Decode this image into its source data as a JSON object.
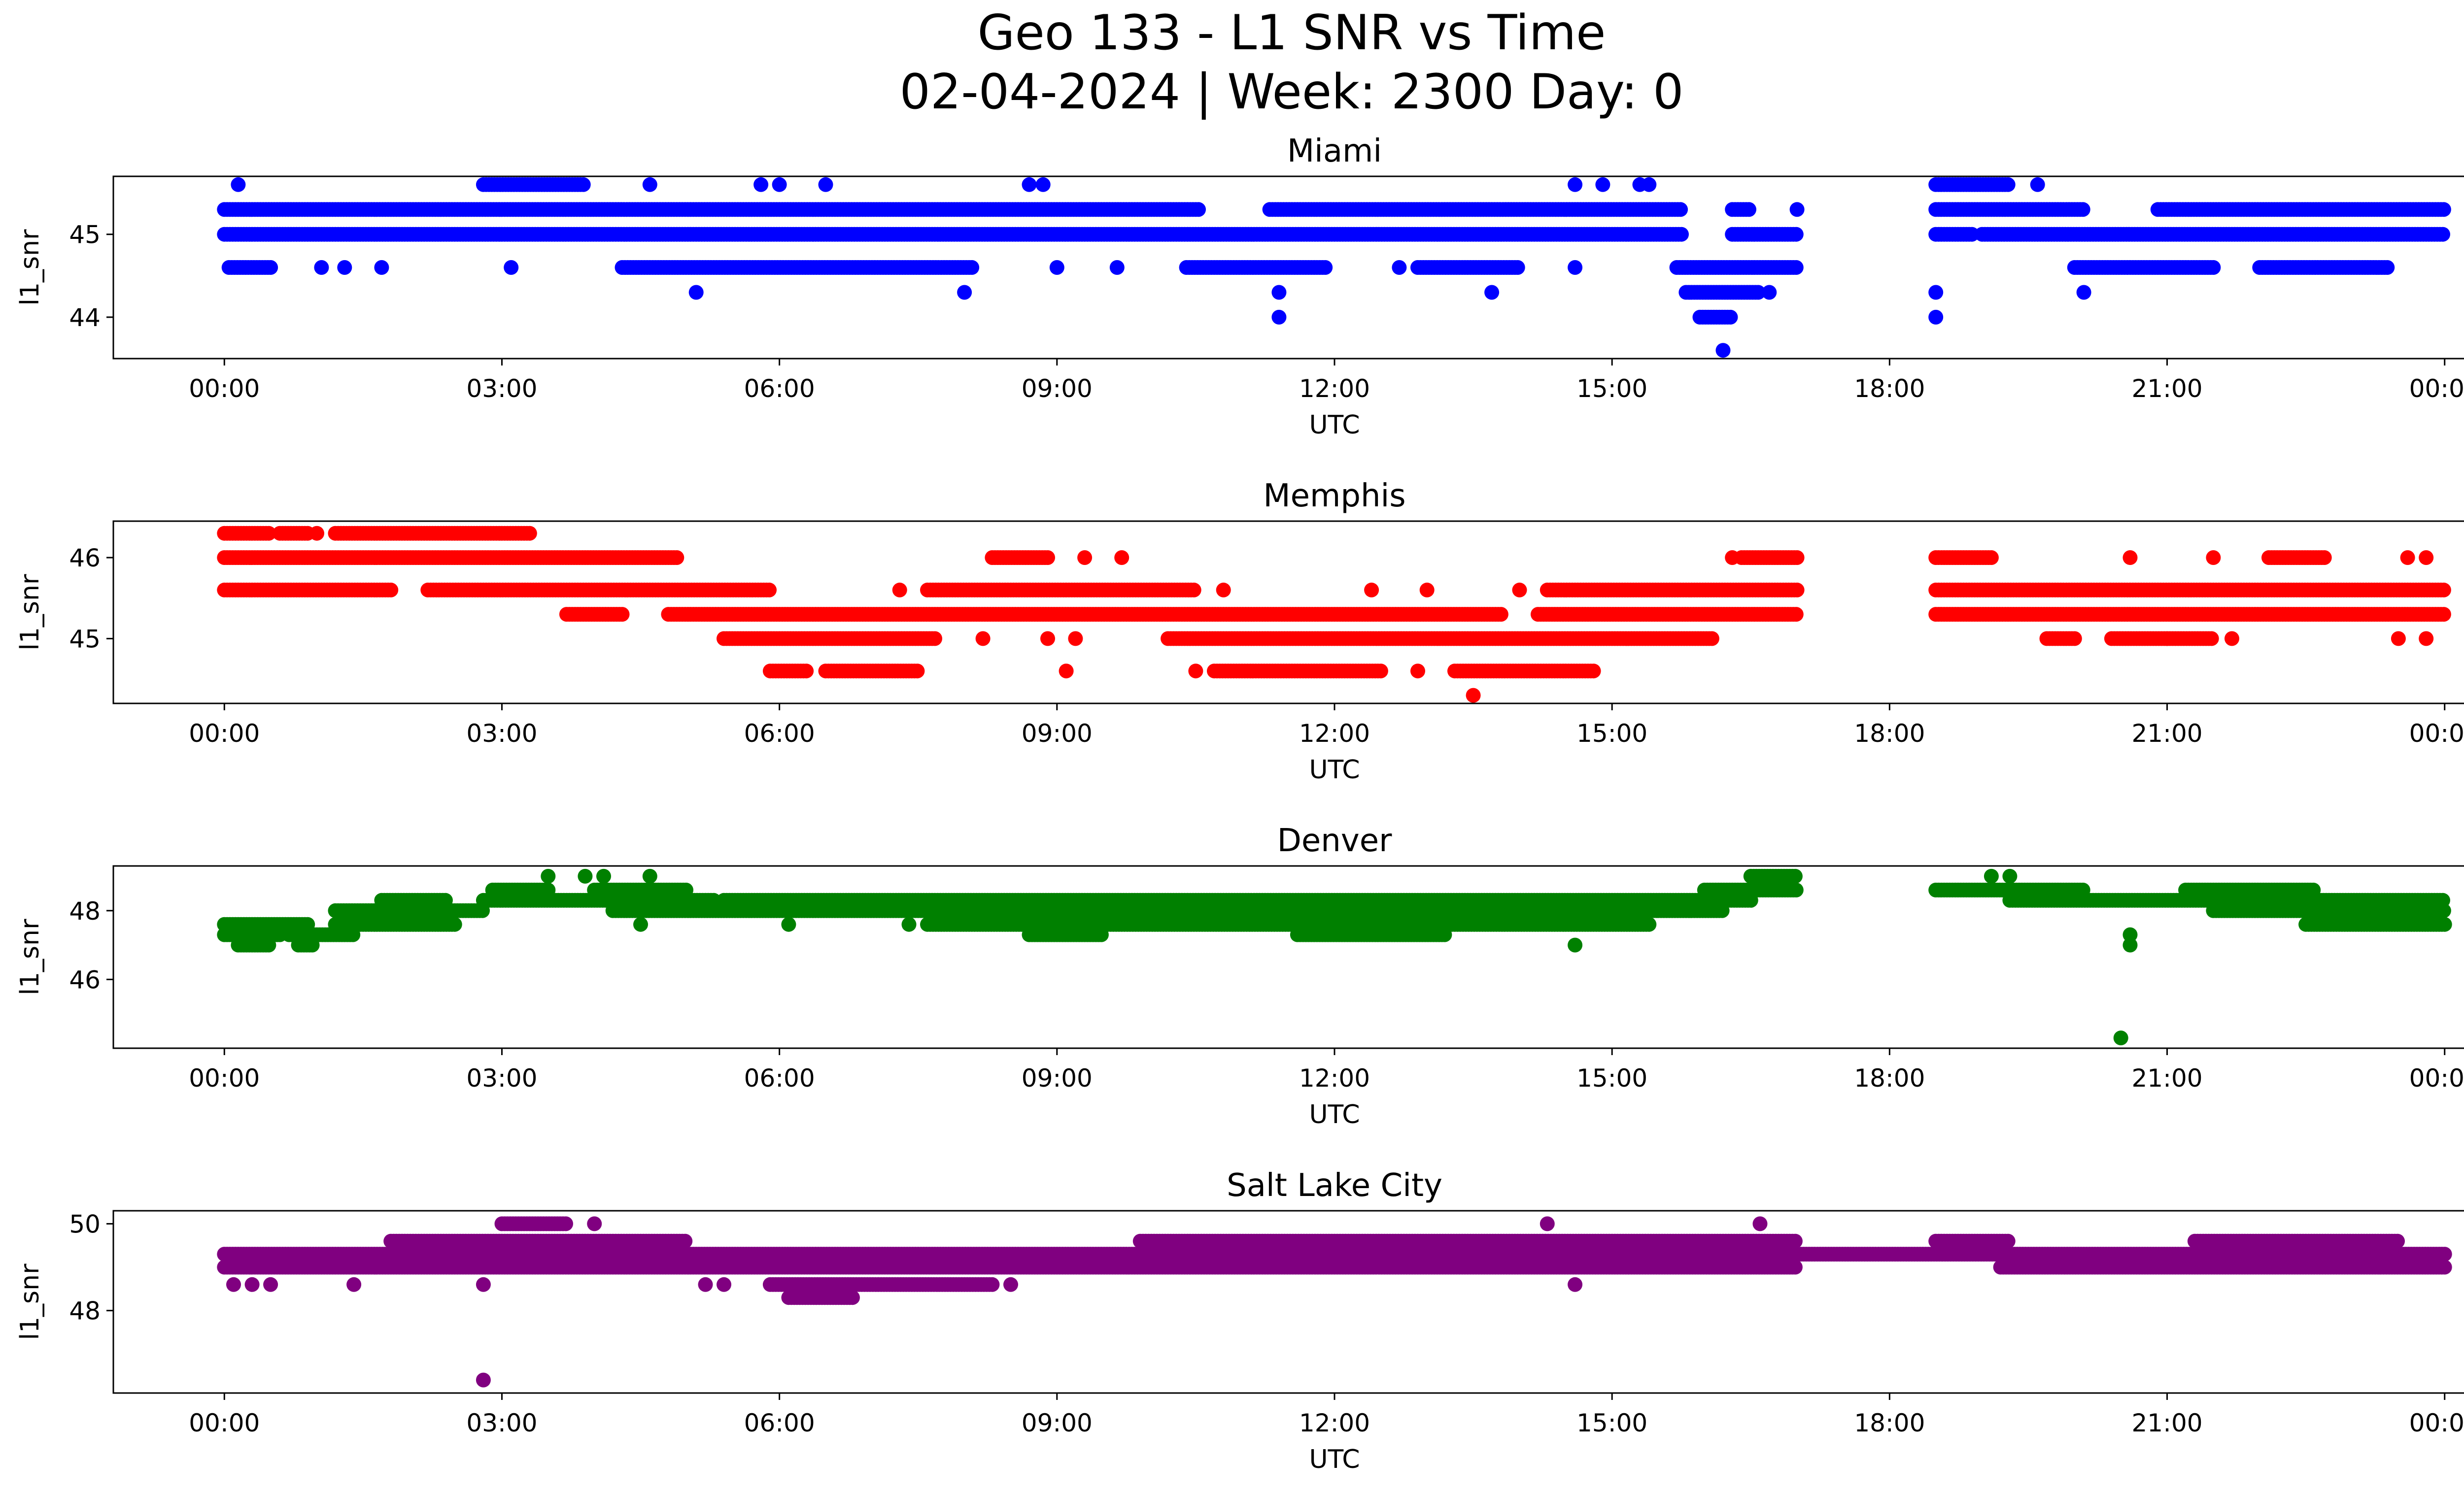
{
  "figure": {
    "title_line1": "Geo 133 - L1 SNR vs Time",
    "title_line2": "02-04-2024 | Week: 2300 Day: 0"
  },
  "chart_data": [
    {
      "type": "scatter",
      "title": "Miami",
      "xlabel": "UTC",
      "ylabel": "l1_snr",
      "color": "#0000ff",
      "x_unit": "hours UTC",
      "xlim": [
        -1.2,
        25.2
      ],
      "ylim": [
        43.5,
        45.7
      ],
      "xticks": [
        0,
        3,
        6,
        9,
        12,
        15,
        18,
        21,
        24
      ],
      "xtick_labels": [
        "00:00",
        "03:00",
        "06:00",
        "09:00",
        "12:00",
        "15:00",
        "18:00",
        "21:00",
        "00:00"
      ],
      "yticks": [
        44,
        45
      ],
      "ytick_labels": [
        "44",
        "45"
      ],
      "bands": [
        {
          "y": 45.3,
          "segments": [
            [
              0.0,
              10.55
            ],
            [
              11.3,
              15.75
            ],
            [
              16.3,
              16.5
            ],
            [
              18.5,
              20.1
            ],
            [
              20.9,
              24.0
            ]
          ]
        },
        {
          "y": 45.0,
          "segments": [
            [
              0.0,
              15.75
            ],
            [
              16.3,
              17.0
            ],
            [
              18.5,
              18.9
            ],
            [
              19.0,
              24.0
            ]
          ]
        },
        {
          "y": 44.6,
          "segments": [
            [
              0.05,
              0.5
            ],
            [
              4.3,
              8.1
            ],
            [
              10.4,
              11.9
            ],
            [
              12.9,
              14.0
            ],
            [
              15.7,
              17.0
            ],
            [
              20.0,
              21.5
            ],
            [
              22.0,
              23.4
            ]
          ]
        },
        {
          "y": 45.6,
          "segments": [
            [
              2.8,
              3.9
            ],
            [
              18.5,
              19.3
            ]
          ]
        },
        {
          "y": 44.3,
          "segments": [
            [
              15.8,
              16.6
            ]
          ]
        },
        {
          "y": 44.0,
          "segments": [
            [
              15.95,
              16.3
            ]
          ]
        }
      ],
      "points": [
        [
          0.15,
          45.6
        ],
        [
          4.6,
          45.6
        ],
        [
          5.8,
          45.6
        ],
        [
          6.0,
          45.6
        ],
        [
          6.5,
          45.6
        ],
        [
          8.7,
          45.6
        ],
        [
          8.85,
          45.6
        ],
        [
          14.6,
          45.6
        ],
        [
          14.9,
          45.6
        ],
        [
          15.3,
          45.6
        ],
        [
          15.4,
          45.6
        ],
        [
          19.6,
          45.6
        ],
        [
          17.0,
          45.3
        ],
        [
          1.05,
          44.6
        ],
        [
          1.3,
          44.6
        ],
        [
          1.7,
          44.6
        ],
        [
          3.1,
          44.6
        ],
        [
          9.0,
          44.6
        ],
        [
          9.65,
          44.6
        ],
        [
          12.7,
          44.6
        ],
        [
          14.6,
          44.6
        ],
        [
          5.1,
          44.3
        ],
        [
          8.0,
          44.3
        ],
        [
          11.4,
          44.3
        ],
        [
          13.7,
          44.3
        ],
        [
          16.7,
          44.3
        ],
        [
          18.5,
          44.3
        ],
        [
          20.1,
          44.3
        ],
        [
          11.4,
          44.0
        ],
        [
          18.5,
          44.0
        ],
        [
          16.2,
          43.6
        ]
      ]
    },
    {
      "type": "scatter",
      "title": "Memphis",
      "xlabel": "UTC",
      "ylabel": "l1_snr",
      "color": "#ff0000",
      "x_unit": "hours UTC",
      "xlim": [
        -1.2,
        25.2
      ],
      "ylim": [
        44.2,
        46.45
      ],
      "xticks": [
        0,
        3,
        6,
        9,
        12,
        15,
        18,
        21,
        24
      ],
      "xtick_labels": [
        "00:00",
        "03:00",
        "06:00",
        "09:00",
        "12:00",
        "15:00",
        "18:00",
        "21:00",
        "00:00"
      ],
      "yticks": [
        45,
        46
      ],
      "ytick_labels": [
        "45",
        "46"
      ],
      "bands": [
        {
          "y": 46.3,
          "segments": [
            [
              0.0,
              0.5
            ],
            [
              0.6,
              0.9
            ],
            [
              1.2,
              3.3
            ]
          ]
        },
        {
          "y": 46.0,
          "segments": [
            [
              0.0,
              4.9
            ],
            [
              8.3,
              8.9
            ],
            [
              16.4,
              17.0
            ],
            [
              18.5,
              19.1
            ],
            [
              22.1,
              22.7
            ]
          ]
        },
        {
          "y": 45.6,
          "segments": [
            [
              0.0,
              1.8
            ],
            [
              2.2,
              5.9
            ],
            [
              7.6,
              10.5
            ],
            [
              14.3,
              17.0
            ],
            [
              18.5,
              24.0
            ]
          ]
        },
        {
          "y": 45.3,
          "segments": [
            [
              3.7,
              4.3
            ],
            [
              4.8,
              13.8
            ],
            [
              14.2,
              17.0
            ],
            [
              18.5,
              24.0
            ]
          ]
        },
        {
          "y": 45.0,
          "segments": [
            [
              5.4,
              7.7
            ],
            [
              10.2,
              16.1
            ],
            [
              19.7,
              20.0
            ],
            [
              20.4,
              21.5
            ]
          ]
        },
        {
          "y": 44.6,
          "segments": [
            [
              5.9,
              6.3
            ],
            [
              6.5,
              7.5
            ],
            [
              10.7,
              12.5
            ],
            [
              13.3,
              14.8
            ]
          ]
        }
      ],
      "points": [
        [
          1.0,
          46.3
        ],
        [
          9.3,
          46.0
        ],
        [
          9.7,
          46.0
        ],
        [
          16.3,
          46.0
        ],
        [
          20.6,
          46.0
        ],
        [
          21.5,
          46.0
        ],
        [
          23.6,
          46.0
        ],
        [
          23.8,
          46.0
        ],
        [
          7.3,
          45.6
        ],
        [
          10.8,
          45.6
        ],
        [
          12.4,
          45.6
        ],
        [
          13.0,
          45.6
        ],
        [
          14.0,
          45.6
        ],
        [
          8.2,
          45.0
        ],
        [
          8.9,
          45.0
        ],
        [
          9.2,
          45.0
        ],
        [
          21.0,
          45.0
        ],
        [
          21.7,
          45.0
        ],
        [
          23.5,
          45.0
        ],
        [
          23.8,
          45.0
        ],
        [
          9.1,
          44.6
        ],
        [
          10.5,
          44.6
        ],
        [
          12.9,
          44.6
        ],
        [
          13.5,
          44.3
        ]
      ]
    },
    {
      "type": "scatter",
      "title": "Denver",
      "xlabel": "UTC",
      "ylabel": "l1_snr",
      "color": "#008000",
      "x_unit": "hours UTC",
      "xlim": [
        -1.2,
        25.2
      ],
      "ylim": [
        44.0,
        49.3
      ],
      "xticks": [
        0,
        3,
        6,
        9,
        12,
        15,
        18,
        21,
        24
      ],
      "xtick_labels": [
        "00:00",
        "03:00",
        "06:00",
        "09:00",
        "12:00",
        "15:00",
        "18:00",
        "21:00",
        "00:00"
      ],
      "yticks": [
        46,
        48
      ],
      "ytick_labels": [
        "46",
        "48"
      ],
      "bands": [
        {
          "y": 47.6,
          "segments": [
            [
              0.0,
              0.9
            ],
            [
              1.2,
              2.5
            ],
            [
              7.6,
              15.4
            ],
            [
              22.5,
              24.0
            ]
          ]
        },
        {
          "y": 47.3,
          "segments": [
            [
              0.0,
              0.6
            ],
            [
              0.7,
              1.4
            ],
            [
              8.7,
              9.5
            ],
            [
              11.6,
              13.2
            ]
          ]
        },
        {
          "y": 47.0,
          "segments": [
            [
              0.15,
              0.5
            ],
            [
              0.8,
              0.95
            ]
          ]
        },
        {
          "y": 48.0,
          "segments": [
            [
              1.2,
              2.8
            ],
            [
              4.2,
              15.5
            ],
            [
              15.5,
              16.2
            ],
            [
              21.5,
              24.0
            ]
          ]
        },
        {
          "y": 48.3,
          "segments": [
            [
              1.7,
              2.4
            ],
            [
              2.8,
              5.3
            ],
            [
              5.4,
              16.5
            ],
            [
              19.3,
              24.0
            ]
          ]
        },
        {
          "y": 48.6,
          "segments": [
            [
              2.9,
              3.5
            ],
            [
              4.0,
              5.0
            ],
            [
              16.0,
              17.0
            ],
            [
              18.5,
              20.1
            ],
            [
              21.2,
              22.6
            ]
          ]
        },
        {
          "y": 49.0,
          "segments": [
            [
              16.5,
              17.0
            ]
          ]
        }
      ],
      "points": [
        [
          3.5,
          49.0
        ],
        [
          3.9,
          49.0
        ],
        [
          4.1,
          49.0
        ],
        [
          4.6,
          49.0
        ],
        [
          19.1,
          49.0
        ],
        [
          19.3,
          49.0
        ],
        [
          4.5,
          47.6
        ],
        [
          6.1,
          47.6
        ],
        [
          7.4,
          47.6
        ],
        [
          14.6,
          47.0
        ],
        [
          20.6,
          47.3
        ],
        [
          20.6,
          47.0
        ],
        [
          20.5,
          44.3
        ]
      ]
    },
    {
      "type": "scatter",
      "title": "Salt Lake City",
      "xlabel": "UTC",
      "ylabel": "l1_snr",
      "color": "#800080",
      "x_unit": "hours UTC",
      "xlim": [
        -1.2,
        25.2
      ],
      "ylim": [
        46.1,
        50.3
      ],
      "xticks": [
        0,
        3,
        6,
        9,
        12,
        15,
        18,
        21,
        24
      ],
      "xtick_labels": [
        "00:00",
        "03:00",
        "06:00",
        "09:00",
        "12:00",
        "15:00",
        "18:00",
        "21:00",
        "00:00"
      ],
      "yticks": [
        48,
        50
      ],
      "ytick_labels": [
        "48",
        "50"
      ],
      "bands": [
        {
          "y": 49.3,
          "segments": [
            [
              0.0,
              24.0
            ]
          ]
        },
        {
          "y": 49.0,
          "segments": [
            [
              0.0,
              17.0
            ],
            [
              19.2,
              24.0
            ]
          ]
        },
        {
          "y": 49.6,
          "segments": [
            [
              1.8,
              5.0
            ],
            [
              9.9,
              17.0
            ],
            [
              18.5,
              19.3
            ],
            [
              21.3,
              23.5
            ]
          ]
        },
        {
          "y": 48.6,
          "segments": [
            [
              5.9,
              8.3
            ]
          ]
        },
        {
          "y": 48.3,
          "segments": [
            [
              6.1,
              6.8
            ]
          ]
        },
        {
          "y": 50.0,
          "segments": [
            [
              3.0,
              3.7
            ]
          ]
        }
      ],
      "points": [
        [
          0.1,
          48.6
        ],
        [
          0.3,
          48.6
        ],
        [
          0.5,
          48.6
        ],
        [
          1.4,
          48.6
        ],
        [
          2.8,
          48.6
        ],
        [
          4.0,
          50.0
        ],
        [
          14.3,
          50.0
        ],
        [
          14.6,
          48.6
        ],
        [
          16.6,
          50.0
        ],
        [
          2.8,
          46.4
        ],
        [
          5.2,
          48.6
        ],
        [
          5.4,
          48.6
        ],
        [
          8.5,
          48.6
        ]
      ]
    }
  ]
}
